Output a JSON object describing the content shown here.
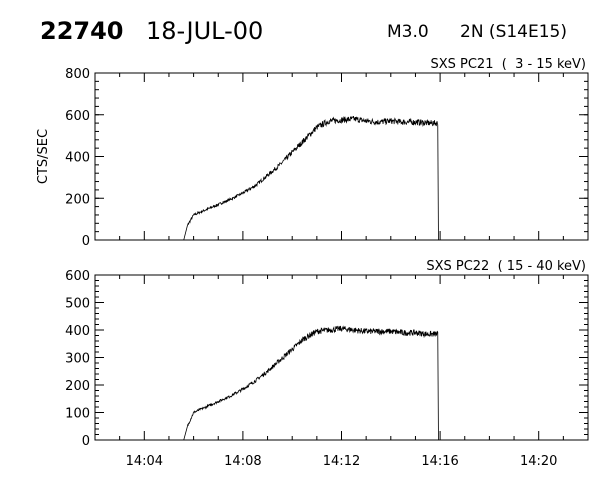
{
  "header": {
    "event_id": "22740",
    "date": "18-JUL-00",
    "flare_class": "M3.0",
    "location": "2N (S14E15)"
  },
  "chart_data": [
    {
      "type": "line",
      "title": "SXS PC21  (  3 - 15 keV)",
      "ylabel": "CTS/SEC",
      "xlabel": "",
      "xlim": [
        "14:02:00",
        "14:22:00"
      ],
      "ylim": [
        0,
        800
      ],
      "yticks": [
        0,
        200,
        400,
        600,
        800
      ],
      "xticks": [
        "14:04",
        "14:08",
        "14:12",
        "14:16",
        "14:20"
      ],
      "grid": false,
      "series": [
        {
          "x": [
            "14:05:36",
            "14:05:45",
            "14:06:00",
            "14:06:30",
            "14:07:00",
            "14:07:30",
            "14:08:00",
            "14:08:30",
            "14:09:00",
            "14:09:30",
            "14:10:00",
            "14:10:30",
            "14:11:00",
            "14:11:30",
            "14:12:00",
            "14:12:30",
            "14:13:00",
            "14:13:30",
            "14:14:00",
            "14:14:30",
            "14:15:00",
            "14:15:30",
            "14:15:55",
            "14:15:56"
          ],
          "y": [
            0,
            70,
            120,
            145,
            170,
            195,
            225,
            260,
            310,
            360,
            420,
            480,
            540,
            570,
            575,
            580,
            570,
            565,
            570,
            565,
            565,
            560,
            560,
            0
          ]
        }
      ]
    },
    {
      "type": "line",
      "title": "SXS PC22  ( 15 - 40 keV)",
      "ylabel": "",
      "xlabel": "",
      "xlim": [
        "14:02:00",
        "14:22:00"
      ],
      "ylim": [
        0,
        600
      ],
      "yticks": [
        0,
        100,
        200,
        300,
        400,
        500,
        600
      ],
      "xticks": [
        "14:04",
        "14:08",
        "14:12",
        "14:16",
        "14:20"
      ],
      "grid": false,
      "series": [
        {
          "x": [
            "14:05:36",
            "14:05:45",
            "14:06:00",
            "14:06:30",
            "14:07:00",
            "14:07:30",
            "14:08:00",
            "14:08:30",
            "14:09:00",
            "14:09:30",
            "14:10:00",
            "14:10:30",
            "14:11:00",
            "14:11:30",
            "14:12:00",
            "14:12:30",
            "14:13:00",
            "14:13:30",
            "14:14:00",
            "14:14:30",
            "14:15:00",
            "14:15:30",
            "14:15:55",
            "14:15:56"
          ],
          "y": [
            0,
            50,
            100,
            120,
            140,
            160,
            185,
            215,
            250,
            290,
            330,
            370,
            395,
            400,
            405,
            400,
            395,
            395,
            395,
            390,
            390,
            385,
            385,
            0
          ]
        }
      ]
    }
  ]
}
